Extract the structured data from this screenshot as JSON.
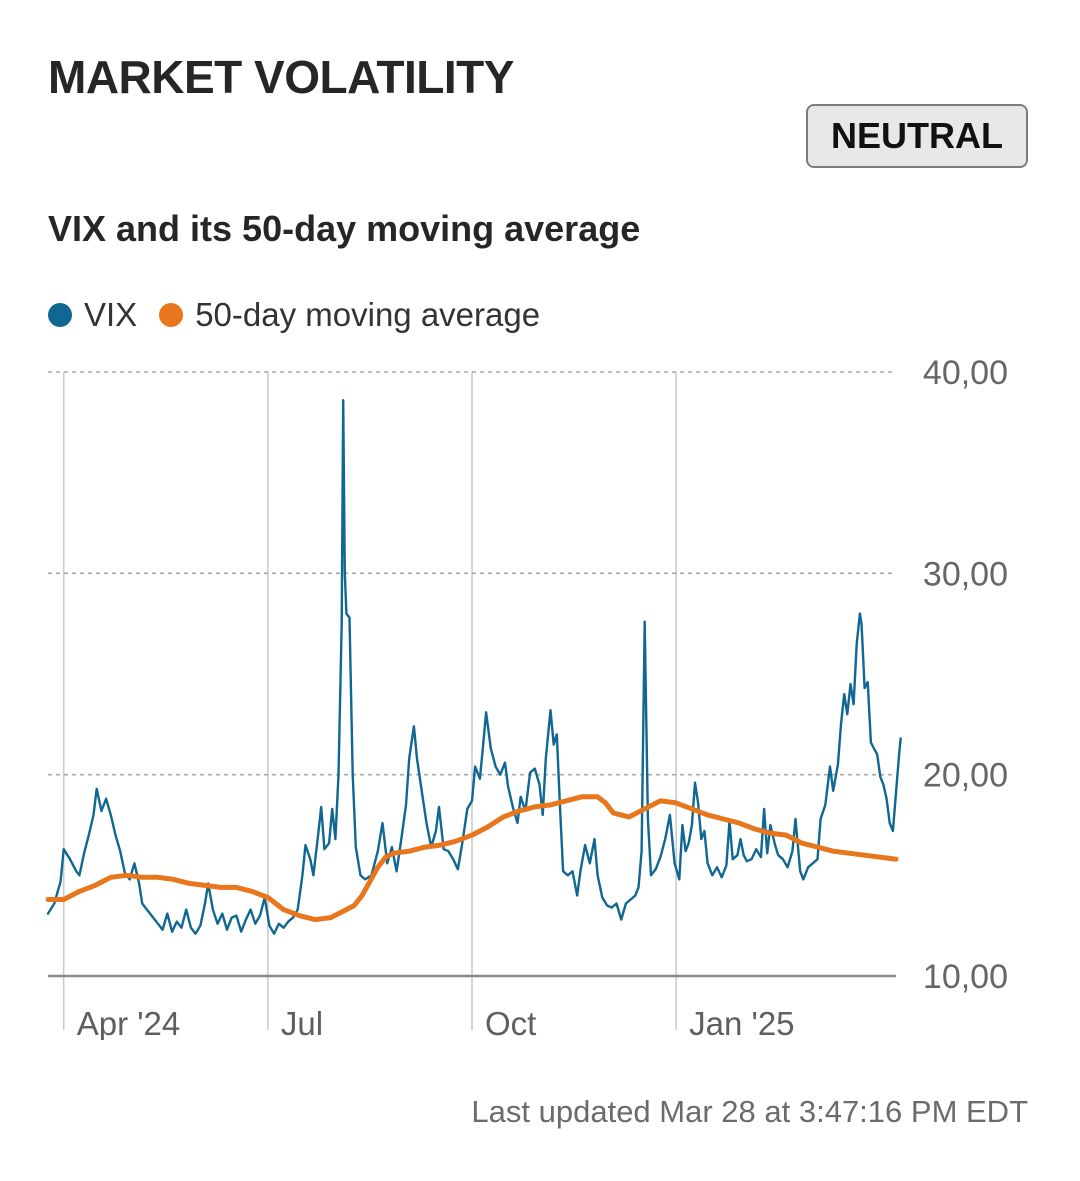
{
  "header": {
    "title": "MARKET VOLATILITY",
    "badge": "NEUTRAL"
  },
  "chart_data": {
    "type": "line",
    "title": "VIX and its 50-day moving average",
    "legend": [
      {
        "name": "VIX",
        "color": "#106792"
      },
      {
        "name": "50-day moving average",
        "color": "#e8761c"
      }
    ],
    "ylim": [
      10,
      40
    ],
    "yticks": [
      10,
      20,
      30,
      40
    ],
    "ytick_labels": [
      "10,00",
      "20,00",
      "30,00",
      "40,00"
    ],
    "xlim": [
      0,
      54
    ],
    "xticks": [
      {
        "x": 1,
        "label": "Apr '24"
      },
      {
        "x": 14,
        "label": "Jul"
      },
      {
        "x": 27,
        "label": "Oct"
      },
      {
        "x": 40,
        "label": "Jan '25"
      }
    ],
    "series": [
      {
        "name": "VIX",
        "color": "#106792",
        "points": [
          [
            0,
            13.1
          ],
          [
            0.4,
            13.6
          ],
          [
            0.8,
            14.7
          ],
          [
            1.0,
            16.3
          ],
          [
            1.4,
            15.8
          ],
          [
            1.8,
            15.2
          ],
          [
            2.0,
            15.0
          ],
          [
            2.3,
            16.1
          ],
          [
            2.6,
            17.0
          ],
          [
            2.9,
            18.0
          ],
          [
            3.1,
            19.3
          ],
          [
            3.4,
            18.2
          ],
          [
            3.7,
            18.8
          ],
          [
            4.0,
            18.0
          ],
          [
            4.3,
            17.0
          ],
          [
            4.6,
            16.2
          ],
          [
            4.9,
            15.1
          ],
          [
            5.2,
            14.8
          ],
          [
            5.5,
            15.6
          ],
          [
            5.8,
            14.6
          ],
          [
            6.0,
            13.6
          ],
          [
            6.3,
            13.3
          ],
          [
            6.6,
            13.0
          ],
          [
            7.0,
            12.6
          ],
          [
            7.3,
            12.3
          ],
          [
            7.6,
            13.1
          ],
          [
            7.9,
            12.2
          ],
          [
            8.2,
            12.7
          ],
          [
            8.5,
            12.4
          ],
          [
            8.8,
            13.3
          ],
          [
            9.1,
            12.4
          ],
          [
            9.4,
            12.1
          ],
          [
            9.7,
            12.5
          ],
          [
            10.0,
            13.6
          ],
          [
            10.2,
            14.6
          ],
          [
            10.5,
            13.3
          ],
          [
            10.8,
            12.6
          ],
          [
            11.1,
            13.1
          ],
          [
            11.4,
            12.3
          ],
          [
            11.7,
            12.9
          ],
          [
            12.0,
            13.0
          ],
          [
            12.3,
            12.2
          ],
          [
            12.6,
            12.8
          ],
          [
            12.9,
            13.3
          ],
          [
            13.2,
            12.6
          ],
          [
            13.5,
            13.0
          ],
          [
            13.8,
            13.9
          ],
          [
            14.1,
            12.5
          ],
          [
            14.4,
            12.1
          ],
          [
            14.7,
            12.6
          ],
          [
            15.0,
            12.4
          ],
          [
            15.3,
            12.7
          ],
          [
            15.6,
            12.9
          ],
          [
            15.9,
            13.3
          ],
          [
            16.2,
            15.0
          ],
          [
            16.4,
            16.5
          ],
          [
            16.7,
            15.8
          ],
          [
            16.9,
            15.0
          ],
          [
            17.2,
            17.0
          ],
          [
            17.4,
            18.4
          ],
          [
            17.6,
            16.3
          ],
          [
            17.9,
            16.6
          ],
          [
            18.1,
            18.3
          ],
          [
            18.3,
            16.8
          ],
          [
            18.5,
            20.0
          ],
          [
            18.7,
            27.5
          ],
          [
            18.8,
            38.6
          ],
          [
            18.9,
            30.0
          ],
          [
            19.0,
            28.0
          ],
          [
            19.2,
            27.8
          ],
          [
            19.4,
            20.0
          ],
          [
            19.6,
            16.4
          ],
          [
            19.9,
            15.0
          ],
          [
            20.2,
            14.8
          ],
          [
            20.6,
            15.0
          ],
          [
            21.0,
            16.2
          ],
          [
            21.3,
            17.6
          ],
          [
            21.6,
            15.6
          ],
          [
            21.9,
            16.4
          ],
          [
            22.2,
            15.2
          ],
          [
            22.5,
            16.8
          ],
          [
            22.8,
            18.5
          ],
          [
            23.0,
            20.8
          ],
          [
            23.3,
            22.4
          ],
          [
            23.5,
            20.8
          ],
          [
            23.8,
            19.2
          ],
          [
            24.1,
            17.6
          ],
          [
            24.4,
            16.4
          ],
          [
            24.7,
            17.2
          ],
          [
            24.9,
            18.4
          ],
          [
            25.2,
            16.3
          ],
          [
            25.5,
            16.2
          ],
          [
            25.8,
            15.8
          ],
          [
            26.1,
            15.3
          ],
          [
            26.4,
            16.7
          ],
          [
            26.7,
            18.3
          ],
          [
            27.0,
            18.7
          ],
          [
            27.2,
            20.4
          ],
          [
            27.5,
            19.8
          ],
          [
            27.7,
            21.4
          ],
          [
            27.9,
            23.1
          ],
          [
            28.2,
            21.3
          ],
          [
            28.5,
            20.4
          ],
          [
            28.8,
            20.0
          ],
          [
            29.1,
            20.6
          ],
          [
            29.3,
            19.4
          ],
          [
            29.6,
            18.4
          ],
          [
            29.9,
            17.6
          ],
          [
            30.1,
            18.9
          ],
          [
            30.4,
            18.2
          ],
          [
            30.7,
            20.1
          ],
          [
            31.0,
            20.3
          ],
          [
            31.3,
            19.5
          ],
          [
            31.5,
            18.0
          ],
          [
            31.7,
            20.8
          ],
          [
            32.0,
            23.2
          ],
          [
            32.2,
            21.5
          ],
          [
            32.4,
            22.0
          ],
          [
            32.6,
            18.5
          ],
          [
            32.8,
            15.2
          ],
          [
            33.1,
            15.0
          ],
          [
            33.4,
            15.2
          ],
          [
            33.7,
            14.0
          ],
          [
            33.9,
            15.2
          ],
          [
            34.2,
            16.5
          ],
          [
            34.5,
            15.6
          ],
          [
            34.8,
            16.8
          ],
          [
            35.0,
            15.0
          ],
          [
            35.3,
            13.9
          ],
          [
            35.6,
            13.5
          ],
          [
            35.9,
            13.4
          ],
          [
            36.2,
            13.6
          ],
          [
            36.5,
            12.8
          ],
          [
            36.8,
            13.6
          ],
          [
            37.1,
            13.8
          ],
          [
            37.4,
            14.0
          ],
          [
            37.6,
            14.4
          ],
          [
            37.8,
            16.2
          ],
          [
            38.0,
            27.6
          ],
          [
            38.2,
            17.8
          ],
          [
            38.4,
            15.0
          ],
          [
            38.7,
            15.3
          ],
          [
            39.0,
            15.9
          ],
          [
            39.3,
            16.8
          ],
          [
            39.6,
            18.0
          ],
          [
            39.9,
            15.6
          ],
          [
            40.2,
            14.8
          ],
          [
            40.4,
            17.5
          ],
          [
            40.6,
            16.2
          ],
          [
            40.8,
            16.6
          ],
          [
            41.0,
            17.5
          ],
          [
            41.2,
            19.6
          ],
          [
            41.4,
            18.6
          ],
          [
            41.6,
            16.8
          ],
          [
            41.8,
            17.2
          ],
          [
            42.0,
            15.6
          ],
          [
            42.3,
            15.0
          ],
          [
            42.6,
            15.4
          ],
          [
            42.9,
            14.9
          ],
          [
            43.2,
            15.5
          ],
          [
            43.4,
            17.7
          ],
          [
            43.6,
            15.8
          ],
          [
            43.9,
            16.0
          ],
          [
            44.1,
            16.8
          ],
          [
            44.3,
            16.0
          ],
          [
            44.5,
            15.7
          ],
          [
            44.8,
            15.8
          ],
          [
            45.1,
            16.3
          ],
          [
            45.4,
            15.9
          ],
          [
            45.6,
            18.3
          ],
          [
            45.8,
            16.1
          ],
          [
            46.0,
            17.5
          ],
          [
            46.3,
            16.5
          ],
          [
            46.5,
            16.0
          ],
          [
            46.8,
            15.8
          ],
          [
            47.1,
            15.4
          ],
          [
            47.4,
            16.2
          ],
          [
            47.6,
            17.8
          ],
          [
            47.9,
            15.2
          ],
          [
            48.1,
            14.8
          ],
          [
            48.4,
            15.4
          ],
          [
            48.7,
            15.6
          ],
          [
            49.0,
            15.8
          ],
          [
            49.2,
            17.8
          ],
          [
            49.5,
            18.5
          ],
          [
            49.8,
            20.4
          ],
          [
            50.0,
            19.2
          ],
          [
            50.3,
            20.5
          ],
          [
            50.5,
            22.5
          ],
          [
            50.7,
            24.0
          ],
          [
            50.9,
            23.0
          ],
          [
            51.1,
            24.5
          ],
          [
            51.3,
            23.5
          ],
          [
            51.5,
            26.5
          ],
          [
            51.7,
            28.0
          ],
          [
            51.8,
            27.5
          ],
          [
            51.9,
            26.0
          ],
          [
            52.0,
            24.3
          ],
          [
            52.2,
            24.6
          ],
          [
            52.4,
            21.6
          ],
          [
            52.6,
            21.3
          ],
          [
            52.8,
            21.0
          ],
          [
            53.0,
            19.9
          ],
          [
            53.2,
            19.5
          ],
          [
            53.4,
            18.8
          ],
          [
            53.6,
            17.6
          ],
          [
            53.8,
            17.2
          ],
          [
            54.0,
            19.1
          ],
          [
            54.2,
            21.0
          ],
          [
            54.3,
            21.8
          ]
        ]
      },
      {
        "name": "50-day moving average",
        "color": "#e8761c",
        "points": [
          [
            0,
            13.8
          ],
          [
            1,
            13.8
          ],
          [
            2,
            14.2
          ],
          [
            3,
            14.5
          ],
          [
            4,
            14.9
          ],
          [
            5,
            15.0
          ],
          [
            6,
            14.9
          ],
          [
            7,
            14.9
          ],
          [
            8,
            14.8
          ],
          [
            9,
            14.6
          ],
          [
            10,
            14.5
          ],
          [
            11,
            14.4
          ],
          [
            12,
            14.4
          ],
          [
            13,
            14.2
          ],
          [
            14,
            13.9
          ],
          [
            15,
            13.3
          ],
          [
            16,
            13.0
          ],
          [
            17,
            12.8
          ],
          [
            18,
            12.9
          ],
          [
            19,
            13.3
          ],
          [
            19.5,
            13.5
          ],
          [
            20,
            14.0
          ],
          [
            20.5,
            14.7
          ],
          [
            21,
            15.4
          ],
          [
            21.5,
            15.9
          ],
          [
            22,
            16.1
          ],
          [
            23,
            16.2
          ],
          [
            24,
            16.4
          ],
          [
            25,
            16.5
          ],
          [
            26,
            16.7
          ],
          [
            27,
            17.0
          ],
          [
            28,
            17.4
          ],
          [
            29,
            17.9
          ],
          [
            30,
            18.2
          ],
          [
            31,
            18.4
          ],
          [
            32,
            18.5
          ],
          [
            33,
            18.7
          ],
          [
            34,
            18.9
          ],
          [
            35,
            18.9
          ],
          [
            35.5,
            18.6
          ],
          [
            36,
            18.1
          ],
          [
            37,
            17.9
          ],
          [
            38,
            18.3
          ],
          [
            39,
            18.7
          ],
          [
            40,
            18.6
          ],
          [
            41,
            18.3
          ],
          [
            42,
            18.0
          ],
          [
            43,
            17.8
          ],
          [
            44,
            17.6
          ],
          [
            45,
            17.3
          ],
          [
            46,
            17.1
          ],
          [
            47,
            17.0
          ],
          [
            48,
            16.6
          ],
          [
            49,
            16.4
          ],
          [
            50,
            16.2
          ],
          [
            51,
            16.1
          ],
          [
            52,
            16.0
          ],
          [
            53,
            15.9
          ],
          [
            54,
            15.8
          ]
        ]
      }
    ]
  },
  "footer": {
    "updated": "Last updated Mar 28 at 3:47:16 PM EDT"
  }
}
